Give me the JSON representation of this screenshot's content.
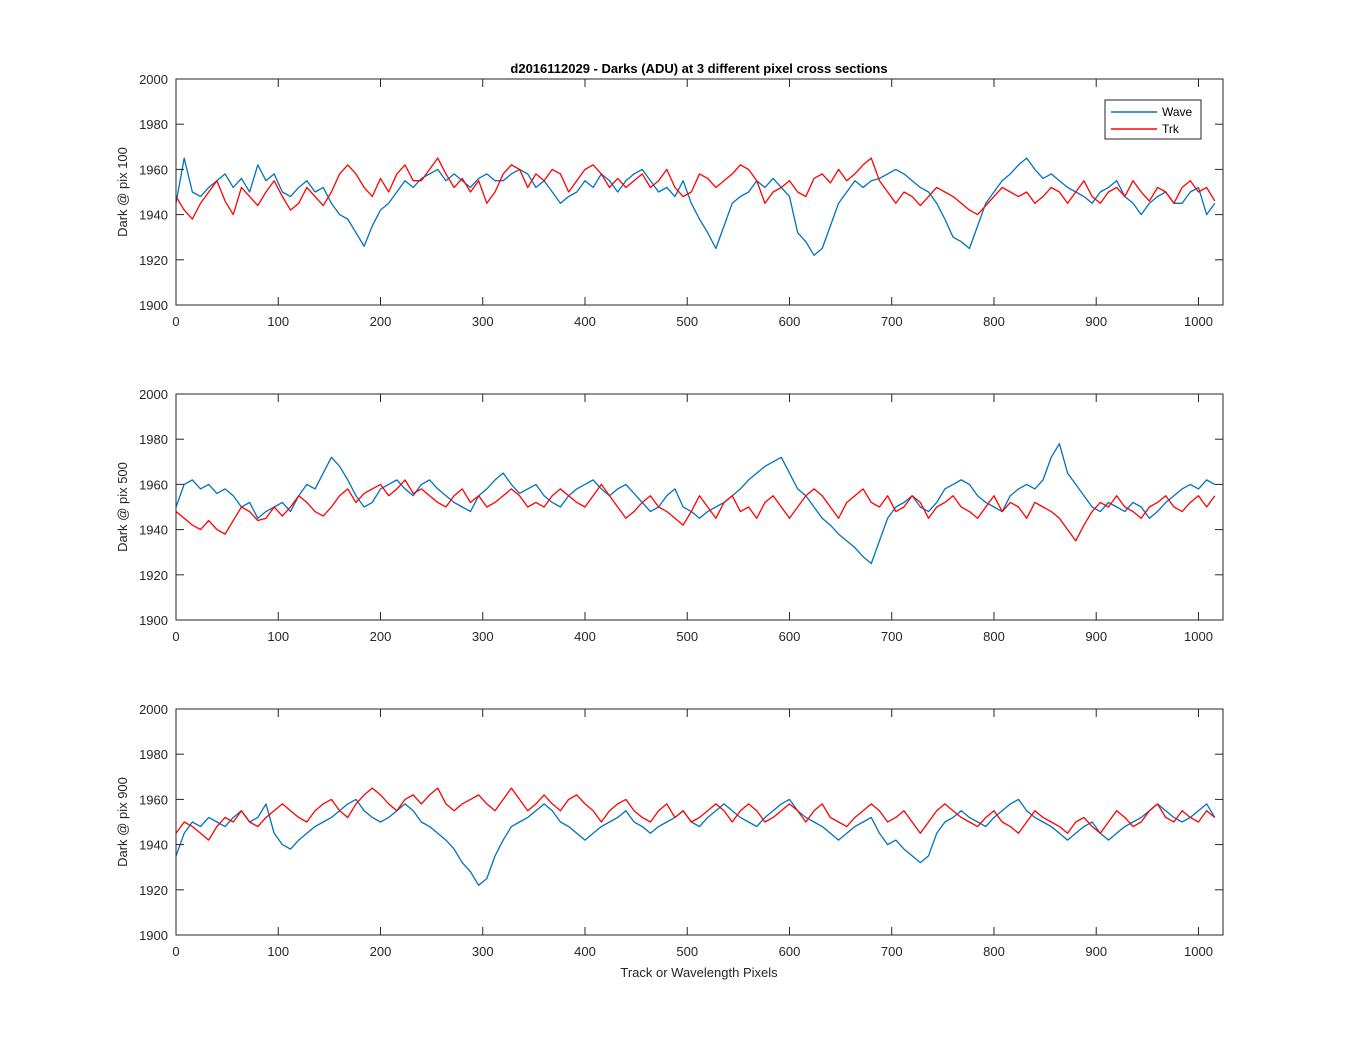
{
  "figure_title": "d2016112029 - Darks (ADU) at 3 different pixel cross sections",
  "xlabel": "Track or Wavelength Pixels",
  "colors": {
    "Wave": "#0072BD",
    "Trk": "#FF0000",
    "axes": "#262626"
  },
  "chart_data": [
    {
      "type": "line",
      "title": "d2016112029 - Darks (ADU) at 3 different pixel cross sections",
      "xlabel": "",
      "ylabel": "Dark @ pix 100",
      "xlim": [
        0,
        1024
      ],
      "ylim": [
        1900,
        2000
      ],
      "xticks": [
        0,
        100,
        200,
        300,
        400,
        500,
        600,
        700,
        800,
        900,
        1000
      ],
      "yticks": [
        1900,
        1920,
        1940,
        1960,
        1980,
        2000
      ],
      "legend": {
        "placement": "top-right",
        "entries": [
          "Wave",
          "Trk"
        ]
      },
      "series": [
        {
          "name": "Wave",
          "x_step": 8,
          "values": [
            1945,
            1965,
            1950,
            1948,
            1952,
            1955,
            1958,
            1952,
            1956,
            1950,
            1962,
            1955,
            1958,
            1950,
            1948,
            1952,
            1955,
            1950,
            1952,
            1945,
            1940,
            1938,
            1932,
            1926,
            1935,
            1942,
            1945,
            1950,
            1955,
            1952,
            1956,
            1958,
            1960,
            1955,
            1958,
            1955,
            1952,
            1956,
            1958,
            1955,
            1955,
            1958,
            1960,
            1958,
            1952,
            1955,
            1950,
            1945,
            1948,
            1950,
            1955,
            1952,
            1958,
            1955,
            1950,
            1955,
            1958,
            1960,
            1955,
            1950,
            1952,
            1948,
            1955,
            1945,
            1938,
            1932,
            1925,
            1935,
            1945,
            1948,
            1950,
            1955,
            1952,
            1956,
            1952,
            1948,
            1932,
            1928,
            1922,
            1925,
            1935,
            1945,
            1950,
            1955,
            1952,
            1955,
            1956,
            1958,
            1960,
            1958,
            1955,
            1952,
            1950,
            1945,
            1938,
            1930,
            1928,
            1925,
            1935,
            1945,
            1950,
            1955,
            1958,
            1962,
            1965,
            1960,
            1956,
            1958,
            1955,
            1952,
            1950,
            1948,
            1945,
            1950,
            1952,
            1955,
            1948,
            1945,
            1940,
            1945,
            1948,
            1950,
            1945,
            1945,
            1950,
            1952,
            1940,
            1945
          ]
        },
        {
          "name": "Trk",
          "x_step": 8,
          "values": [
            1948,
            1942,
            1938,
            1945,
            1950,
            1955,
            1946,
            1940,
            1952,
            1948,
            1944,
            1950,
            1955,
            1948,
            1942,
            1945,
            1952,
            1948,
            1944,
            1950,
            1958,
            1962,
            1958,
            1952,
            1948,
            1956,
            1950,
            1958,
            1962,
            1955,
            1955,
            1960,
            1965,
            1958,
            1952,
            1956,
            1950,
            1955,
            1945,
            1950,
            1958,
            1962,
            1960,
            1952,
            1958,
            1955,
            1960,
            1958,
            1950,
            1955,
            1960,
            1962,
            1958,
            1952,
            1956,
            1952,
            1955,
            1958,
            1952,
            1955,
            1960,
            1952,
            1948,
            1950,
            1958,
            1956,
            1952,
            1955,
            1958,
            1962,
            1960,
            1955,
            1945,
            1950,
            1952,
            1955,
            1950,
            1948,
            1956,
            1958,
            1954,
            1960,
            1955,
            1958,
            1962,
            1965,
            1955,
            1950,
            1945,
            1950,
            1948,
            1944,
            1948,
            1952,
            1950,
            1948,
            1945,
            1942,
            1940,
            1944,
            1948,
            1952,
            1950,
            1948,
            1950,
            1945,
            1948,
            1952,
            1950,
            1945,
            1950,
            1955,
            1948,
            1945,
            1950,
            1952,
            1948,
            1955,
            1950,
            1946,
            1952,
            1950,
            1945,
            1952,
            1955,
            1950,
            1952,
            1946
          ]
        }
      ]
    },
    {
      "type": "line",
      "title": "",
      "xlabel": "",
      "ylabel": "Dark @ pix 500",
      "xlim": [
        0,
        1024
      ],
      "ylim": [
        1900,
        2000
      ],
      "xticks": [
        0,
        100,
        200,
        300,
        400,
        500,
        600,
        700,
        800,
        900,
        1000
      ],
      "yticks": [
        1900,
        1920,
        1940,
        1960,
        1980,
        2000
      ],
      "legend": null,
      "series": [
        {
          "name": "Wave",
          "x_step": 8,
          "values": [
            1950,
            1960,
            1962,
            1958,
            1960,
            1956,
            1958,
            1955,
            1950,
            1952,
            1945,
            1948,
            1950,
            1952,
            1948,
            1955,
            1960,
            1958,
            1965,
            1972,
            1968,
            1962,
            1955,
            1950,
            1952,
            1958,
            1960,
            1962,
            1958,
            1955,
            1960,
            1962,
            1958,
            1955,
            1952,
            1950,
            1948,
            1955,
            1958,
            1962,
            1965,
            1960,
            1956,
            1958,
            1960,
            1955,
            1952,
            1950,
            1955,
            1958,
            1960,
            1962,
            1958,
            1955,
            1958,
            1960,
            1956,
            1952,
            1948,
            1950,
            1955,
            1958,
            1950,
            1948,
            1945,
            1948,
            1950,
            1952,
            1955,
            1958,
            1962,
            1965,
            1968,
            1970,
            1972,
            1965,
            1958,
            1955,
            1950,
            1945,
            1942,
            1938,
            1935,
            1932,
            1928,
            1925,
            1935,
            1945,
            1950,
            1952,
            1955,
            1950,
            1948,
            1952,
            1958,
            1960,
            1962,
            1960,
            1955,
            1952,
            1950,
            1948,
            1955,
            1958,
            1960,
            1958,
            1962,
            1972,
            1978,
            1965,
            1960,
            1955,
            1950,
            1948,
            1952,
            1950,
            1948,
            1952,
            1950,
            1945,
            1948,
            1952,
            1955,
            1958,
            1960,
            1958,
            1962,
            1960
          ]
        },
        {
          "name": "Trk",
          "x_step": 8,
          "values": [
            1948,
            1945,
            1942,
            1940,
            1944,
            1940,
            1938,
            1944,
            1950,
            1948,
            1944,
            1945,
            1950,
            1946,
            1950,
            1955,
            1952,
            1948,
            1946,
            1950,
            1955,
            1958,
            1952,
            1956,
            1958,
            1960,
            1955,
            1958,
            1962,
            1956,
            1958,
            1955,
            1952,
            1950,
            1955,
            1958,
            1952,
            1955,
            1950,
            1952,
            1955,
            1958,
            1955,
            1950,
            1952,
            1950,
            1955,
            1958,
            1955,
            1952,
            1950,
            1955,
            1960,
            1955,
            1950,
            1945,
            1948,
            1952,
            1955,
            1950,
            1948,
            1945,
            1942,
            1948,
            1955,
            1950,
            1945,
            1952,
            1955,
            1948,
            1950,
            1945,
            1952,
            1955,
            1950,
            1945,
            1950,
            1955,
            1958,
            1955,
            1950,
            1945,
            1952,
            1955,
            1958,
            1952,
            1950,
            1955,
            1948,
            1950,
            1955,
            1952,
            1945,
            1950,
            1952,
            1955,
            1950,
            1948,
            1945,
            1950,
            1955,
            1948,
            1952,
            1950,
            1945,
            1952,
            1950,
            1948,
            1945,
            1940,
            1935,
            1942,
            1948,
            1952,
            1950,
            1955,
            1950,
            1948,
            1945,
            1950,
            1952,
            1955,
            1950,
            1948,
            1952,
            1955,
            1950,
            1955
          ]
        }
      ]
    },
    {
      "type": "line",
      "title": "",
      "xlabel": "Track or Wavelength Pixels",
      "ylabel": "Dark @ pix 900",
      "xlim": [
        0,
        1024
      ],
      "ylim": [
        1900,
        2000
      ],
      "xticks": [
        0,
        100,
        200,
        300,
        400,
        500,
        600,
        700,
        800,
        900,
        1000
      ],
      "yticks": [
        1900,
        1920,
        1940,
        1960,
        1980,
        2000
      ],
      "legend": null,
      "series": [
        {
          "name": "Wave",
          "x_step": 8,
          "values": [
            1935,
            1945,
            1950,
            1948,
            1952,
            1950,
            1948,
            1952,
            1955,
            1950,
            1952,
            1958,
            1945,
            1940,
            1938,
            1942,
            1945,
            1948,
            1950,
            1952,
            1955,
            1958,
            1960,
            1955,
            1952,
            1950,
            1952,
            1955,
            1958,
            1955,
            1950,
            1948,
            1945,
            1942,
            1938,
            1932,
            1928,
            1922,
            1925,
            1935,
            1942,
            1948,
            1950,
            1952,
            1955,
            1958,
            1955,
            1950,
            1948,
            1945,
            1942,
            1945,
            1948,
            1950,
            1952,
            1955,
            1950,
            1948,
            1945,
            1948,
            1950,
            1952,
            1955,
            1950,
            1948,
            1952,
            1955,
            1958,
            1955,
            1952,
            1950,
            1948,
            1952,
            1955,
            1958,
            1960,
            1955,
            1952,
            1950,
            1948,
            1945,
            1942,
            1945,
            1948,
            1950,
            1952,
            1945,
            1940,
            1942,
            1938,
            1935,
            1932,
            1935,
            1945,
            1950,
            1952,
            1955,
            1952,
            1950,
            1948,
            1952,
            1955,
            1958,
            1960,
            1955,
            1952,
            1950,
            1948,
            1945,
            1942,
            1945,
            1948,
            1950,
            1945,
            1942,
            1945,
            1948,
            1950,
            1952,
            1955,
            1958,
            1955,
            1952,
            1950,
            1952,
            1955,
            1958,
            1952
          ]
        },
        {
          "name": "Trk",
          "x_step": 8,
          "values": [
            1945,
            1950,
            1948,
            1945,
            1942,
            1948,
            1952,
            1950,
            1955,
            1950,
            1948,
            1952,
            1955,
            1958,
            1955,
            1952,
            1950,
            1955,
            1958,
            1960,
            1955,
            1952,
            1958,
            1962,
            1965,
            1962,
            1958,
            1955,
            1960,
            1962,
            1958,
            1962,
            1965,
            1958,
            1955,
            1958,
            1960,
            1962,
            1958,
            1955,
            1960,
            1965,
            1960,
            1955,
            1958,
            1962,
            1958,
            1955,
            1960,
            1962,
            1958,
            1955,
            1950,
            1955,
            1958,
            1960,
            1955,
            1952,
            1950,
            1955,
            1958,
            1952,
            1955,
            1950,
            1952,
            1955,
            1958,
            1955,
            1950,
            1955,
            1958,
            1955,
            1950,
            1952,
            1955,
            1958,
            1955,
            1950,
            1955,
            1958,
            1952,
            1950,
            1948,
            1952,
            1955,
            1958,
            1955,
            1950,
            1952,
            1955,
            1950,
            1945,
            1950,
            1955,
            1958,
            1955,
            1952,
            1950,
            1948,
            1952,
            1955,
            1950,
            1948,
            1945,
            1950,
            1955,
            1952,
            1950,
            1948,
            1945,
            1950,
            1952,
            1948,
            1945,
            1950,
            1955,
            1952,
            1948,
            1950,
            1955,
            1958,
            1952,
            1950,
            1955,
            1952,
            1950,
            1955,
            1952
          ]
        }
      ]
    }
  ]
}
